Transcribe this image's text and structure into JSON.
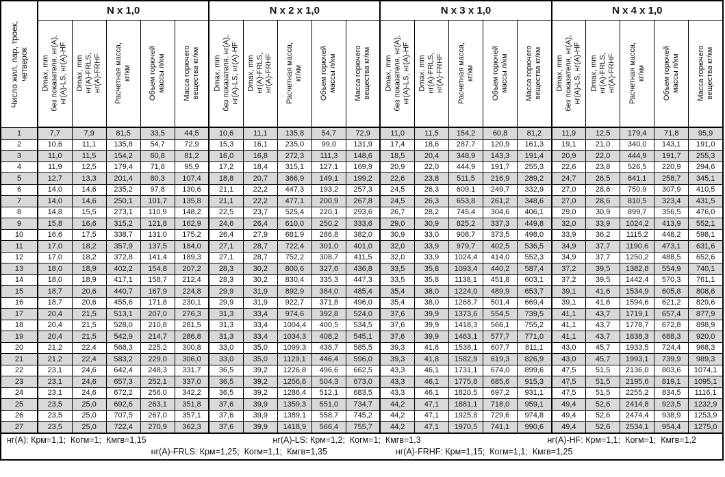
{
  "table": {
    "row_label_header": "Число жил, пар, троек,\nчетверок",
    "group_headers": [
      "N x 1,0",
      "N x 2 x 1,0",
      "N x 3 x 1,0",
      "N x 4 x 1,0"
    ],
    "subcolumn_headers": [
      "Dmax, mm\nбез показателя, нг(А),\nнг(А)-LS, нг(А)-HF",
      "Dmax, mm\nнг(А)-FRLS,\nнг(А)-FRHF",
      "Расчетная масса,\nкг/км",
      "Объем горючей\nмассы л/км",
      "Масса горючего\nвещества кг/км"
    ],
    "rows": [
      [
        "1",
        "7,7",
        "7,9",
        "81,5",
        "33,5",
        "44,5",
        "10,6",
        "11,1",
        "135,8",
        "54,7",
        "72,9",
        "11,0",
        "11,5",
        "154,2",
        "60,8",
        "81,2",
        "11,9",
        "12,5",
        "179,4",
        "71,8",
        "95,9"
      ],
      [
        "2",
        "10,6",
        "11,1",
        "135,8",
        "54,7",
        "72,9",
        "15,3",
        "16,1",
        "235,0",
        "99,0",
        "131,9",
        "17,4",
        "18,6",
        "287,7",
        "120,9",
        "161,3",
        "19,1",
        "21,0",
        "340,0",
        "143,1",
        "191,0"
      ],
      [
        "3",
        "11,0",
        "11,5",
        "154,2",
        "60,8",
        "81,2",
        "16,0",
        "16,8",
        "272,3",
        "111,3",
        "148,6",
        "18,5",
        "20,4",
        "348,9",
        "143,3",
        "191,4",
        "20,9",
        "22,0",
        "444,9",
        "191,7",
        "255,3"
      ],
      [
        "4",
        "11,9",
        "12,5",
        "179,4",
        "71,8",
        "95,9",
        "17,2",
        "18,4",
        "315,1",
        "127,1",
        "169,9",
        "20,9",
        "22,0",
        "444,9",
        "191,7",
        "255,3",
        "22,6",
        "23,8",
        "526,5",
        "220,9",
        "294,6"
      ],
      [
        "5",
        "12,7",
        "13,3",
        "201,4",
        "80,3",
        "107,4",
        "18,8",
        "20,7",
        "366,9",
        "149,1",
        "199,2",
        "22,6",
        "23,8",
        "511,5",
        "216,9",
        "289,2",
        "24,7",
        "26,5",
        "641,1",
        "258,7",
        "345,1"
      ],
      [
        "6",
        "14,0",
        "14,6",
        "235,2",
        "97,8",
        "130,6",
        "21,1",
        "22,2",
        "447,3",
        "193,2",
        "257,3",
        "24,5",
        "26,3",
        "609,1",
        "249,7",
        "332,9",
        "27,0",
        "28,6",
        "750,9",
        "307,9",
        "410,5"
      ],
      [
        "7",
        "14,0",
        "14,6",
        "250,1",
        "101,7",
        "135,8",
        "21,1",
        "22,2",
        "477,1",
        "200,9",
        "267,8",
        "24,5",
        "26,3",
        "653,8",
        "261,2",
        "348,6",
        "27,0",
        "28,6",
        "810,5",
        "323,4",
        "431,5"
      ],
      [
        "8",
        "14,8",
        "15,5",
        "273,1",
        "110,9",
        "148,2",
        "22,5",
        "23,7",
        "525,4",
        "220,1",
        "293,6",
        "26,7",
        "28,2",
        "745,4",
        "304,6",
        "406,1",
        "29,0",
        "30,9",
        "899,7",
        "356,5",
        "476,0"
      ],
      [
        "9",
        "15,8",
        "16,6",
        "315,2",
        "121,8",
        "162,9",
        "24,6",
        "26,4",
        "610,0",
        "250,2",
        "333,6",
        "29,0",
        "30,9",
        "825,2",
        "337,3",
        "449,8",
        "32,0",
        "33,9",
        "1024,2",
        "413,9",
        "552,1"
      ],
      [
        "10",
        "16,6",
        "17,5",
        "338,7",
        "131,0",
        "175,2",
        "26,4",
        "27,9",
        "681,9",
        "286,8",
        "382,0",
        "30,9",
        "33,0",
        "908,7",
        "373,5",
        "498,0",
        "33,9",
        "36,2",
        "1115,2",
        "448,2",
        "598,1"
      ],
      [
        "11",
        "17,0",
        "18,2",
        "357,9",
        "137,5",
        "184,0",
        "27,1",
        "28,7",
        "722,4",
        "301,0",
        "401,0",
        "32,0",
        "33,9",
        "979,7",
        "402,5",
        "536,5",
        "34,9",
        "37,7",
        "1190,6",
        "473,1",
        "631,6"
      ],
      [
        "12",
        "17,0",
        "18,2",
        "372,8",
        "141,4",
        "189,3",
        "27,1",
        "28,7",
        "752,2",
        "308,7",
        "411,5",
        "32,0",
        "33,9",
        "1024,4",
        "414,0",
        "552,3",
        "34,9",
        "37,7",
        "1250,2",
        "488,5",
        "652,6"
      ],
      [
        "13",
        "18,0",
        "18,9",
        "402,2",
        "154,8",
        "207,2",
        "28,3",
        "30,2",
        "800,6",
        "327,6",
        "436,8",
        "33,5",
        "35,8",
        "1093,4",
        "440,2",
        "587,4",
        "37,2",
        "39,5",
        "1382,8",
        "554,9",
        "740,1"
      ],
      [
        "14",
        "18,0",
        "18,9",
        "417,1",
        "158,7",
        "212,4",
        "28,3",
        "30,2",
        "830,4",
        "335,3",
        "447,3",
        "33,5",
        "35,8",
        "1138,1",
        "451,8",
        "603,1",
        "37,2",
        "39,5",
        "1442,4",
        "570,3",
        "761,1"
      ],
      [
        "15",
        "18,7",
        "20,6",
        "440,7",
        "167,9",
        "224,8",
        "29,9",
        "31,9",
        "892,9",
        "364,0",
        "485,4",
        "35,4",
        "38,0",
        "1224,0",
        "489,9",
        "653,7",
        "39,1",
        "41,6",
        "1534,9",
        "605,8",
        "808,6"
      ],
      [
        "16",
        "18,7",
        "20,6",
        "455,6",
        "171,8",
        "230,1",
        "29,9",
        "31,9",
        "922,7",
        "371,8",
        "496,0",
        "35,4",
        "38,0",
        "1268,7",
        "501,4",
        "669,4",
        "39,1",
        "41,6",
        "1594,6",
        "621,2",
        "829,6"
      ],
      [
        "17",
        "20,4",
        "21,5",
        "513,1",
        "207,0",
        "276,3",
        "31,3",
        "33,4",
        "974,6",
        "392,8",
        "524,0",
        "37,6",
        "39,9",
        "1373,6",
        "554,5",
        "739,5",
        "41,1",
        "43,7",
        "1719,1",
        "657,4",
        "877,9"
      ],
      [
        "18",
        "20,4",
        "21,5",
        "528,0",
        "210,8",
        "281,5",
        "31,3",
        "33,4",
        "1004,4",
        "400,5",
        "534,5",
        "37,6",
        "39,9",
        "1418,3",
        "566,1",
        "755,2",
        "41,1",
        "43,7",
        "1778,7",
        "672,8",
        "898,9"
      ],
      [
        "19",
        "20,4",
        "21,5",
        "542,9",
        "214,7",
        "286,8",
        "31,3",
        "33,4",
        "1034,3",
        "408,2",
        "545,1",
        "37,6",
        "39,9",
        "1463,1",
        "577,7",
        "771,0",
        "41,1",
        "43,7",
        "1838,3",
        "688,3",
        "920,0"
      ],
      [
        "20",
        "21,2",
        "22,4",
        "568,3",
        "225,2",
        "300,8",
        "33,0",
        "35,0",
        "1099,3",
        "438,7",
        "585,5",
        "39,3",
        "41,8",
        "1538,1",
        "607,7",
        "811,1",
        "43,0",
        "45,7",
        "1933,5",
        "724,4",
        "968,3"
      ],
      [
        "21",
        "21,2",
        "22,4",
        "583,2",
        "229,0",
        "306,0",
        "33,0",
        "35,0",
        "1129,1",
        "446,4",
        "596,0",
        "39,3",
        "41,8",
        "1582,9",
        "619,3",
        "826,9",
        "43,0",
        "45,7",
        "1993,1",
        "739,9",
        "989,3"
      ],
      [
        "22",
        "23,1",
        "24,6",
        "642,4",
        "248,3",
        "331,7",
        "36,5",
        "39,2",
        "1226,8",
        "496,6",
        "662,5",
        "43,3",
        "46,1",
        "1731,1",
        "674,0",
        "899,6",
        "47,5",
        "51,5",
        "2136,0",
        "803,6",
        "1074,1"
      ],
      [
        "23",
        "23,1",
        "24,6",
        "657,3",
        "252,1",
        "337,0",
        "36,5",
        "39,2",
        "1256,6",
        "504,3",
        "673,0",
        "43,3",
        "46,1",
        "1775,8",
        "685,6",
        "915,3",
        "47,5",
        "51,5",
        "2195,6",
        "819,1",
        "1095,1"
      ],
      [
        "24",
        "23,1",
        "24,6",
        "672,2",
        "256,0",
        "342,2",
        "36,5",
        "39,2",
        "1286,4",
        "512,1",
        "683,5",
        "43,3",
        "46,1",
        "1820,5",
        "697,2",
        "931,1",
        "47,5",
        "51,5",
        "2255,2",
        "834,5",
        "1116,1"
      ],
      [
        "25",
        "23,5",
        "25,0",
        "692,6",
        "263,1",
        "351,8",
        "37,6",
        "39,9",
        "1359,3",
        "551,0",
        "734,7",
        "44,2",
        "47,1",
        "1881,1",
        "718,0",
        "959,1",
        "49,4",
        "52,6",
        "2414,8",
        "923,5",
        "1232,9"
      ],
      [
        "26",
        "23,5",
        "25,0",
        "707,5",
        "267,0",
        "357,1",
        "37,6",
        "39,9",
        "1389,1",
        "558,7",
        "745,2",
        "44,2",
        "47,1",
        "1925,8",
        "729,6",
        "974,8",
        "49,4",
        "52,6",
        "2474,4",
        "938,9",
        "1253,9"
      ],
      [
        "27",
        "23,5",
        "25,0",
        "722,4",
        "270,9",
        "362,3",
        "37,6",
        "39,9",
        "1418,9",
        "566,4",
        "755,7",
        "44,2",
        "47,1",
        "1970,5",
        "741,1",
        "990,6",
        "49,4",
        "52,6",
        "2534,1",
        "954,4",
        "1275,0"
      ]
    ]
  },
  "footnotes": {
    "line1": [
      "нг(А): Крм=1,1;  Когм=1;  Кмгв=1,15",
      "нг(А)-LS: Крм=1,2;  Когм=1;  Кмгв=1,3",
      "нг(А)-HF: Крм=1,1;  Когм=1;  Кмгв=1,2"
    ],
    "line2": [
      "нг(А)-FRLS: Крм=1,25;  Когм=1,1;  Кмгв=1,35",
      "нг(А)-FRHF: Крм=1,15;  Когм=1,1;  Кмгв=1,25"
    ]
  },
  "colors": {
    "stripe": "#d9d9d9",
    "border": "#000000",
    "background": "#ffffff"
  }
}
